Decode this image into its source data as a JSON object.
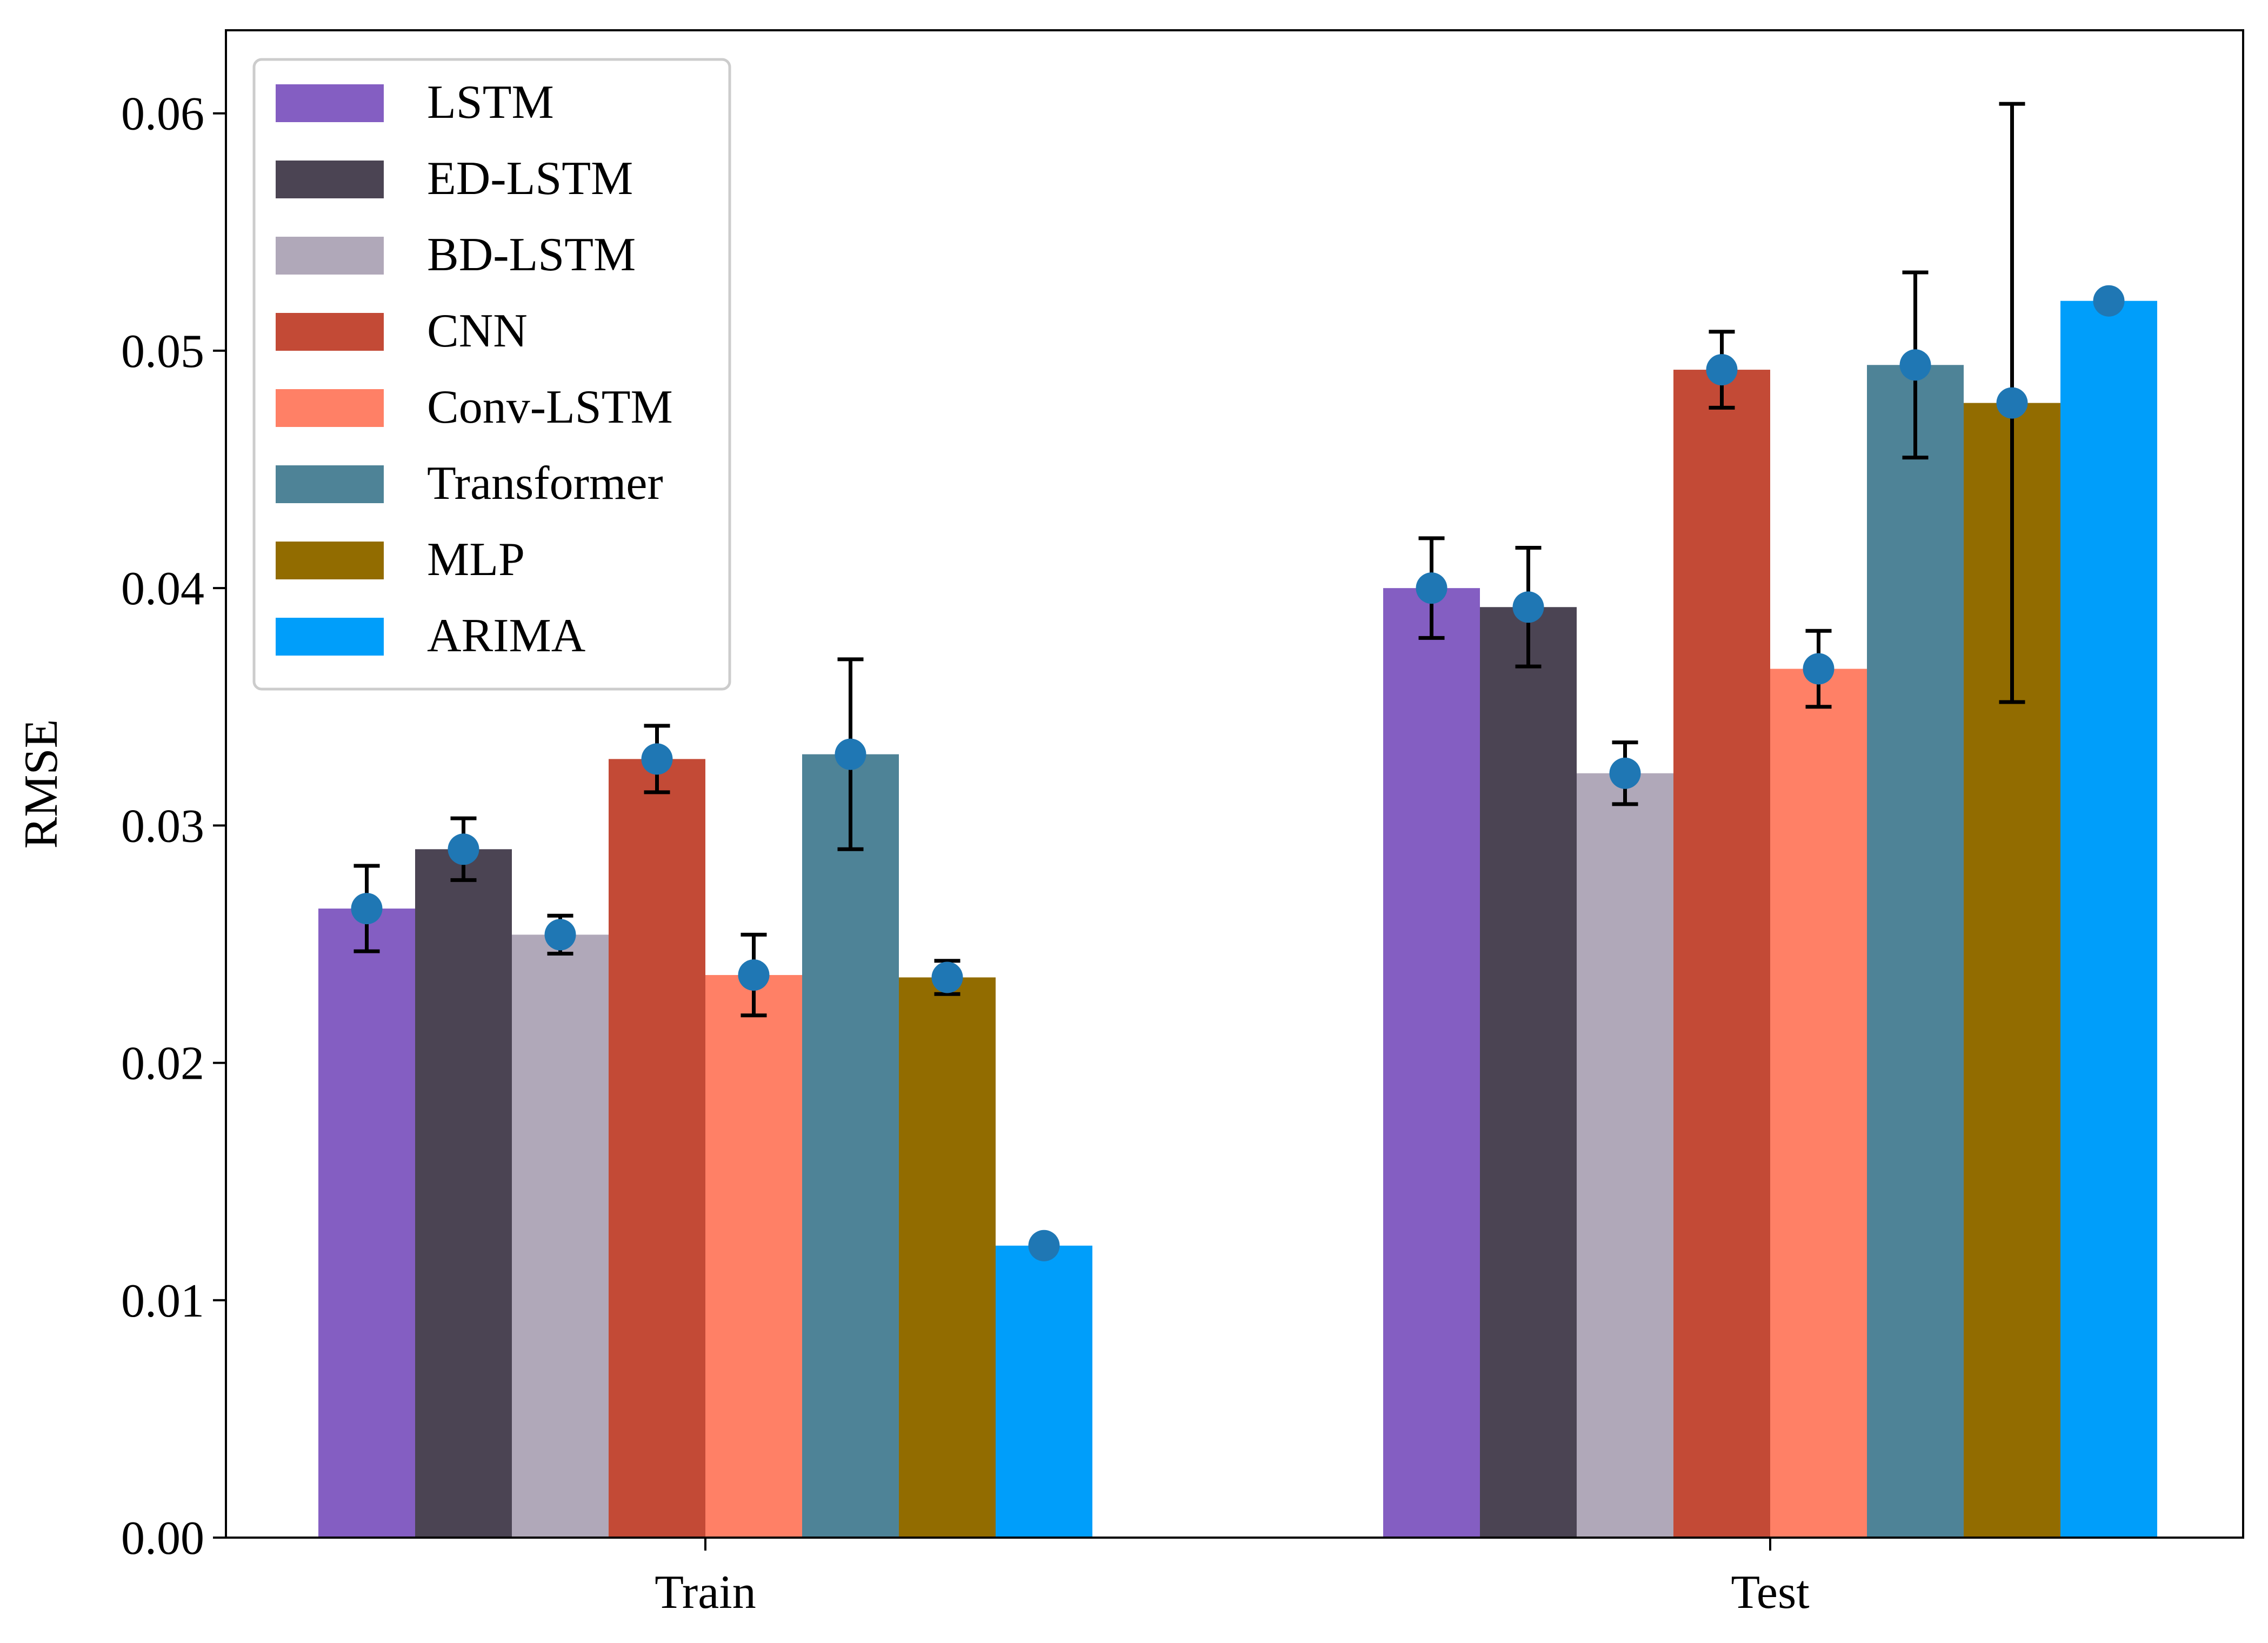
{
  "chart_data": {
    "type": "bar",
    "title": "",
    "xlabel": "",
    "ylabel": "RMSE",
    "categories": [
      "Train",
      "Test"
    ],
    "ylim": [
      0,
      0.0635
    ],
    "yticks": [
      "0.00",
      "0.01",
      "0.02",
      "0.03",
      "0.04",
      "0.05",
      "0.06"
    ],
    "ytick_values": [
      0,
      0.01,
      0.02,
      0.03,
      0.04,
      0.05,
      0.06
    ],
    "legend_position": "top-left",
    "grid": false,
    "series": [
      {
        "name": "LSTM",
        "color": "#845EC2",
        "values": [
          0.0265,
          0.04
        ],
        "errors": [
          0.0018,
          0.0021
        ]
      },
      {
        "name": "ED-LSTM",
        "color": "#4B4453",
        "values": [
          0.029,
          0.0392
        ],
        "errors": [
          0.0013,
          0.0025
        ]
      },
      {
        "name": "BD-LSTM",
        "color": "#B0A8B9",
        "values": [
          0.0254,
          0.0322
        ],
        "errors": [
          0.0008,
          0.0013
        ]
      },
      {
        "name": "CNN",
        "color": "#C34A36",
        "values": [
          0.0328,
          0.0492
        ],
        "errors": [
          0.0014,
          0.0016
        ]
      },
      {
        "name": "Conv-LSTM",
        "color": "#FF8066",
        "values": [
          0.0237,
          0.0366
        ],
        "errors": [
          0.0017,
          0.0016
        ]
      },
      {
        "name": "Transformer",
        "color": "#4E8397",
        "values": [
          0.033,
          0.0494
        ],
        "errors": [
          0.004,
          0.0039
        ]
      },
      {
        "name": "MLP",
        "color": "#926C00",
        "values": [
          0.0236,
          0.0478
        ],
        "errors": [
          0.0007,
          0.0126
        ]
      },
      {
        "name": "ARIMA",
        "color": "#009EFA",
        "values": [
          0.0123,
          0.0521
        ],
        "errors": [
          0,
          0
        ]
      }
    ],
    "marker_color": "#1F77B4"
  }
}
